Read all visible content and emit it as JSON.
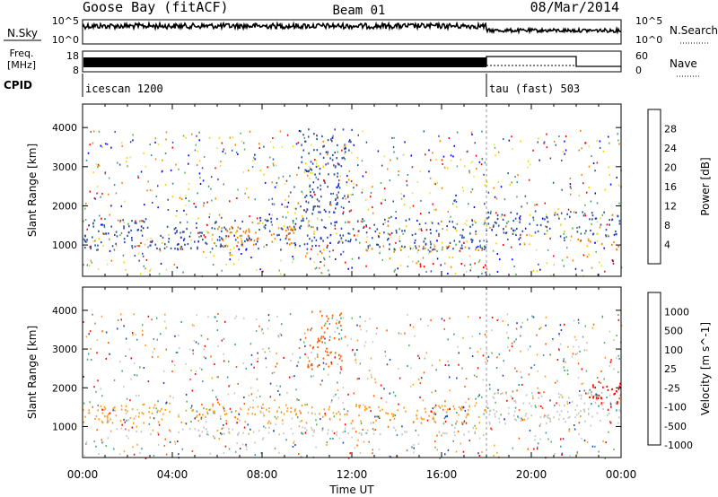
{
  "header": {
    "station": "Goose Bay (fitACF)",
    "beam": "Beam 01",
    "date": "08/Mar/2014"
  },
  "top_panels": {
    "nsky_label": "N.Sky",
    "nsky_ticks": [
      "10^5",
      "10^0"
    ],
    "nsearch_label": "N.Search",
    "nsearch_ticks": [
      "10^5",
      "10^0"
    ],
    "freq_label": "Freq.",
    "freq_unit": "[MHz]",
    "freq_ticks": [
      "18",
      "8"
    ],
    "nave_label": "Nave",
    "nave_ticks": [
      "60",
      "0"
    ],
    "cpid_label": "CPID",
    "cpid_segments": [
      {
        "name": "icescan 1200",
        "start_hour": 0,
        "end_hour": 18
      },
      {
        "name": "tau (fast) 503",
        "start_hour": 18,
        "end_hour": 24
      }
    ]
  },
  "chart_data": [
    {
      "type": "heatmap",
      "title": "",
      "xlabel": "",
      "ylabel": "Slant Range [km]",
      "xlim": [
        0,
        24
      ],
      "ylim": [
        200,
        4600
      ],
      "yticks": [
        "1000",
        "2000",
        "3000",
        "4000"
      ],
      "colorbar": {
        "label": "Power [dB]",
        "ticks": [
          "28",
          "24",
          "20",
          "16",
          "12",
          "8",
          "4"
        ],
        "colors": [
          "#ff0000",
          "#ff7f00",
          "#ffd000",
          "#d6e860",
          "#5bb05b",
          "#3b8f8a",
          "#2a4ca0",
          "#0000ff"
        ]
      },
      "regions": [
        {
          "x": [
            0.0,
            18.0
          ],
          "y": [
            900,
            1700
          ],
          "color": "#2a4ca0"
        },
        {
          "x": [
            5.5,
            9.5
          ],
          "y": [
            950,
            1500
          ],
          "color": "#ff7f00"
        },
        {
          "x": [
            12.5,
            18.0
          ],
          "y": [
            850,
            1000
          ],
          "color": "#ff7f00"
        },
        {
          "x": [
            15.0,
            18.0
          ],
          "y": [
            450,
            550
          ],
          "color": "#ff0000"
        },
        {
          "x": [
            18.0,
            24.0
          ],
          "y": [
            1200,
            1900
          ],
          "color": "#2a4ca0"
        },
        {
          "x": [
            22.0,
            24.0
          ],
          "y": [
            900,
            1200
          ],
          "color": "#ff7f00"
        },
        {
          "x": [
            9.5,
            12.0
          ],
          "y": [
            1800,
            4000
          ],
          "color": "#2a4ca0"
        }
      ]
    },
    {
      "type": "heatmap",
      "title": "",
      "xlabel": "Time UT",
      "ylabel": "Slant Range [km]",
      "xlim": [
        0,
        24
      ],
      "ylim": [
        200,
        4600
      ],
      "xticks": [
        "00:00",
        "04:00",
        "08:00",
        "12:00",
        "16:00",
        "20:00",
        "00:00"
      ],
      "yticks": [
        "1000",
        "2000",
        "3000",
        "4000"
      ],
      "colorbar": {
        "label": "Velocity [m s^-1]",
        "ticks": [
          "1000",
          "500",
          "100",
          "25",
          "-25",
          "-100",
          "-500",
          "-1000"
        ],
        "colors": [
          "#2040b0",
          "#3a9a9a",
          "#5bb05b",
          "#c8c8c0",
          "#c8c8c0",
          "#ffa020",
          "#ff6000",
          "#ff0000"
        ]
      },
      "regions": [
        {
          "x": [
            0.0,
            18.0
          ],
          "y": [
            1100,
            1600
          ],
          "color": "#ffa020"
        },
        {
          "x": [
            2.0,
            18.0
          ],
          "y": [
            800,
            1000
          ],
          "color": "#c8c8c0"
        },
        {
          "x": [
            10.0,
            11.5
          ],
          "y": [
            2500,
            4000
          ],
          "color": "#ff6000"
        },
        {
          "x": [
            18.0,
            24.0
          ],
          "y": [
            1100,
            1900
          ],
          "color": "#c8c8c0"
        },
        {
          "x": [
            22.5,
            24.0
          ],
          "y": [
            1400,
            2200
          ],
          "color": "#ff0000"
        }
      ]
    }
  ]
}
